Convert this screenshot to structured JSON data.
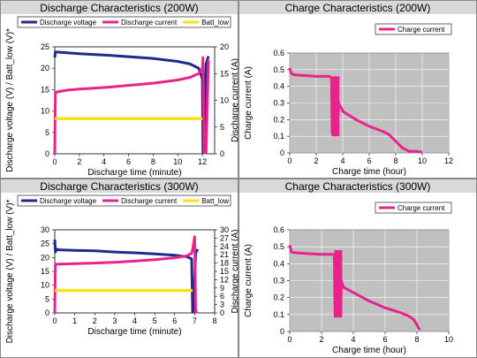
{
  "chart_data": [
    {
      "type": "line",
      "title": "Discharge Characteristics (200W)",
      "xlabel": "Discharge time (minute)",
      "ylabel": "Discharge voltage (V) / Batt_low (V)*",
      "y2label": "Discharge current (A)",
      "xlim": [
        0,
        13
      ],
      "xticks": [
        0,
        2,
        4,
        6,
        8,
        10,
        12
      ],
      "ylim": [
        0,
        25
      ],
      "yticks": [
        0,
        5,
        10,
        15,
        20,
        25
      ],
      "y2lim": [
        0,
        20
      ],
      "y2ticks": [
        0,
        5,
        10,
        15,
        20
      ],
      "grid": false,
      "legend": "top",
      "series": [
        {
          "name": "Discharge voltage",
          "axis": "y",
          "color": "#1f2a8c",
          "x": [
            0,
            0.05,
            1,
            2,
            4,
            6,
            8,
            10,
            11,
            11.7,
            12.0,
            12.05,
            12.15,
            12.3,
            12.5
          ],
          "y": [
            22.5,
            23.8,
            23.6,
            23.4,
            23.1,
            22.7,
            22.3,
            21.6,
            21.0,
            20.0,
            17.5,
            0.3,
            0.3,
            21.0,
            22.8
          ]
        },
        {
          "name": "Discharge current",
          "axis": "y2",
          "color": "#e8238c",
          "x": [
            0,
            0.05,
            1,
            2,
            4,
            6,
            8,
            10,
            11,
            11.7,
            12.0,
            12.05,
            12.15,
            12.3,
            12.5
          ],
          "y": [
            0,
            11.5,
            11.9,
            12.1,
            12.4,
            12.8,
            13.2,
            13.8,
            14.3,
            15.0,
            16.0,
            18.0,
            0.2,
            0.2,
            17.5
          ]
        },
        {
          "name": "Batt_low",
          "axis": "y",
          "color": "#f2e313",
          "x": [
            0,
            12
          ],
          "y": [
            8.2,
            8.2
          ]
        }
      ]
    },
    {
      "type": "line",
      "title": "Charge Characteristics (200W)",
      "xlabel": "Charge time (hour)",
      "ylabel": "Charge current (A)",
      "xlim": [
        0,
        12
      ],
      "xticks": [
        0,
        2,
        4,
        6,
        8,
        10,
        12
      ],
      "ylim": [
        0,
        0.6
      ],
      "yticks": [
        0,
        0.1,
        0.2,
        0.3,
        0.4,
        0.5,
        0.6
      ],
      "grid": true,
      "legend": "top-right",
      "series": [
        {
          "name": "Charge current",
          "color": "#e8238c",
          "x": [
            0,
            0.1,
            0.3,
            1,
            2,
            3,
            3.15,
            3.2,
            3.4,
            3.6,
            3.7,
            3.8,
            3.9,
            4,
            5,
            6,
            7,
            7.5,
            8,
            8.5,
            9,
            9.5,
            10
          ],
          "y": [
            0.51,
            0.48,
            0.47,
            0.465,
            0.46,
            0.46,
            0.45,
            0.12,
            0.12,
            0.12,
            0.3,
            0.28,
            0.27,
            0.25,
            0.2,
            0.16,
            0.13,
            0.11,
            0.07,
            0.03,
            0.01,
            0.01,
            0.005
          ],
          "band": {
            "x": [
              3.15,
              3.75
            ],
            "y": [
              0.1,
              0.46
            ]
          }
        }
      ]
    },
    {
      "type": "line",
      "title": "Discharge Characteristics (300W)",
      "xlabel": "Discharge time (minute)",
      "ylabel": "Discharge voltage (V) / Batt_low (V)*",
      "y2label": "Discharge current (A)",
      "xlim": [
        0,
        8
      ],
      "xticks": [
        0,
        1,
        2,
        3,
        4,
        5,
        6,
        7,
        8
      ],
      "ylim": [
        0,
        30
      ],
      "yticks": [
        0,
        5,
        10,
        15,
        20,
        25,
        30
      ],
      "y2lim": [
        0,
        30
      ],
      "y2ticks": [
        0,
        3,
        6,
        9,
        12,
        15,
        18,
        21,
        24,
        27,
        30
      ],
      "grid": false,
      "legend": "top",
      "series": [
        {
          "name": "Discharge voltage",
          "axis": "y",
          "color": "#1f2a8c",
          "x": [
            0,
            0.03,
            0.1,
            0.2,
            1,
            2,
            3,
            4,
            5,
            6,
            6.6,
            6.85,
            6.9,
            6.95,
            7.05,
            7.15
          ],
          "y": [
            26.5,
            22.0,
            23.0,
            22.8,
            22.6,
            22.4,
            22.0,
            21.7,
            21.3,
            20.8,
            20.3,
            19.5,
            0.3,
            0.3,
            21.5,
            23.0
          ]
        },
        {
          "name": "Discharge current",
          "axis": "y2",
          "color": "#e8238c",
          "x": [
            0,
            0.03,
            0.1,
            1,
            2,
            3,
            4,
            5,
            6,
            6.6,
            6.85,
            6.9,
            7.0,
            7.05,
            7.15
          ],
          "y": [
            0,
            17.5,
            17.6,
            17.8,
            18.0,
            18.3,
            18.7,
            19.2,
            19.9,
            20.6,
            21.5,
            23.0,
            27.5,
            0.3,
            0.3
          ]
        },
        {
          "name": "Batt_low",
          "axis": "y",
          "color": "#f2e313",
          "x": [
            0,
            6.9
          ],
          "y": [
            8.1,
            8.1
          ]
        }
      ]
    },
    {
      "type": "line",
      "title": "Charge Characteristics (300W)",
      "xlabel": "Charge time (hour)",
      "ylabel": "Charge current (A)",
      "xlim": [
        0,
        10
      ],
      "xticks": [
        0,
        2,
        4,
        6,
        8,
        10
      ],
      "ylim": [
        0,
        0.6
      ],
      "yticks": [
        0,
        0.1,
        0.2,
        0.3,
        0.4,
        0.5,
        0.6
      ],
      "grid": true,
      "legend": "top-right",
      "series": [
        {
          "name": "Charge current",
          "color": "#e8238c",
          "x": [
            0,
            0.1,
            0.3,
            1,
            2,
            2.7,
            2.8,
            2.85,
            3.0,
            3.2,
            3.25,
            3.3,
            3.4,
            4,
            5,
            6,
            7,
            7.5,
            7.8,
            8,
            8.1,
            8.2
          ],
          "y": [
            0.51,
            0.47,
            0.465,
            0.46,
            0.455,
            0.455,
            0.45,
            0.09,
            0.09,
            0.09,
            0.3,
            0.28,
            0.26,
            0.23,
            0.18,
            0.14,
            0.11,
            0.09,
            0.07,
            0.04,
            0.02,
            0.01
          ],
          "band": {
            "x": [
              2.8,
              3.3
            ],
            "y": [
              0.09,
              0.48
            ]
          }
        }
      ]
    }
  ]
}
